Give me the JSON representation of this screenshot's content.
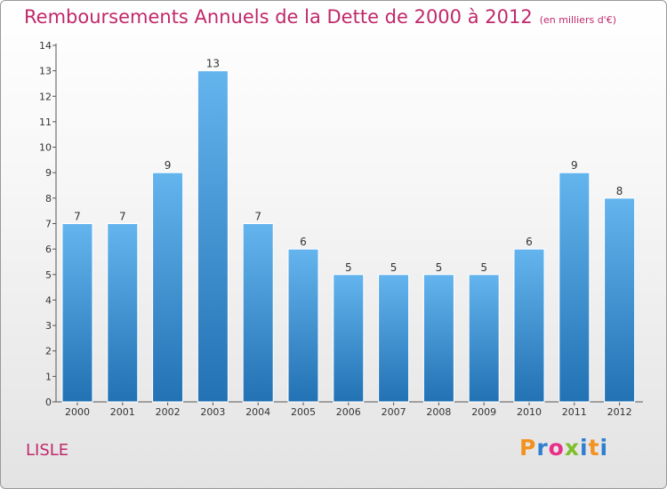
{
  "title": "Remboursements Annuels de la Dette de 2000 à 2012",
  "unit_note": "(en milliers d'€)",
  "commune": "LISLE",
  "logo": {
    "letters": [
      "P",
      "r",
      "o",
      "x",
      "i",
      "t",
      "i"
    ],
    "colors": [
      "#f39220",
      "#2f7fd0",
      "#e8308a",
      "#7fbf2a",
      "#2f7fd0",
      "#f39220",
      "#2f7fd0"
    ]
  },
  "colors": {
    "bar_top": "#64b4ee",
    "bar_bottom": "#2272b4",
    "title": "#c0286a"
  },
  "chart_data": {
    "type": "bar",
    "title": "Remboursements Annuels de la Dette de 2000 à 2012",
    "subtitle": "(en milliers d'€)",
    "categories": [
      "2000",
      "2001",
      "2002",
      "2003",
      "2004",
      "2005",
      "2006",
      "2007",
      "2008",
      "2009",
      "2010",
      "2011",
      "2012"
    ],
    "values": [
      7,
      7,
      9,
      13,
      7,
      6,
      5,
      5,
      5,
      5,
      6,
      9,
      8
    ],
    "value_labels": [
      "7",
      "7",
      "9",
      "13",
      "7",
      "6",
      "5",
      "5",
      "5",
      "5",
      "6",
      "9",
      "8"
    ],
    "yticks": [
      "0",
      "1",
      "2",
      "3",
      "4",
      "5",
      "6",
      "7",
      "8",
      "9",
      "10",
      "11",
      "12",
      "13",
      "14"
    ],
    "ylim": [
      0,
      14
    ],
    "xlabel": "",
    "ylabel": "",
    "grid": false,
    "legend": "none"
  }
}
